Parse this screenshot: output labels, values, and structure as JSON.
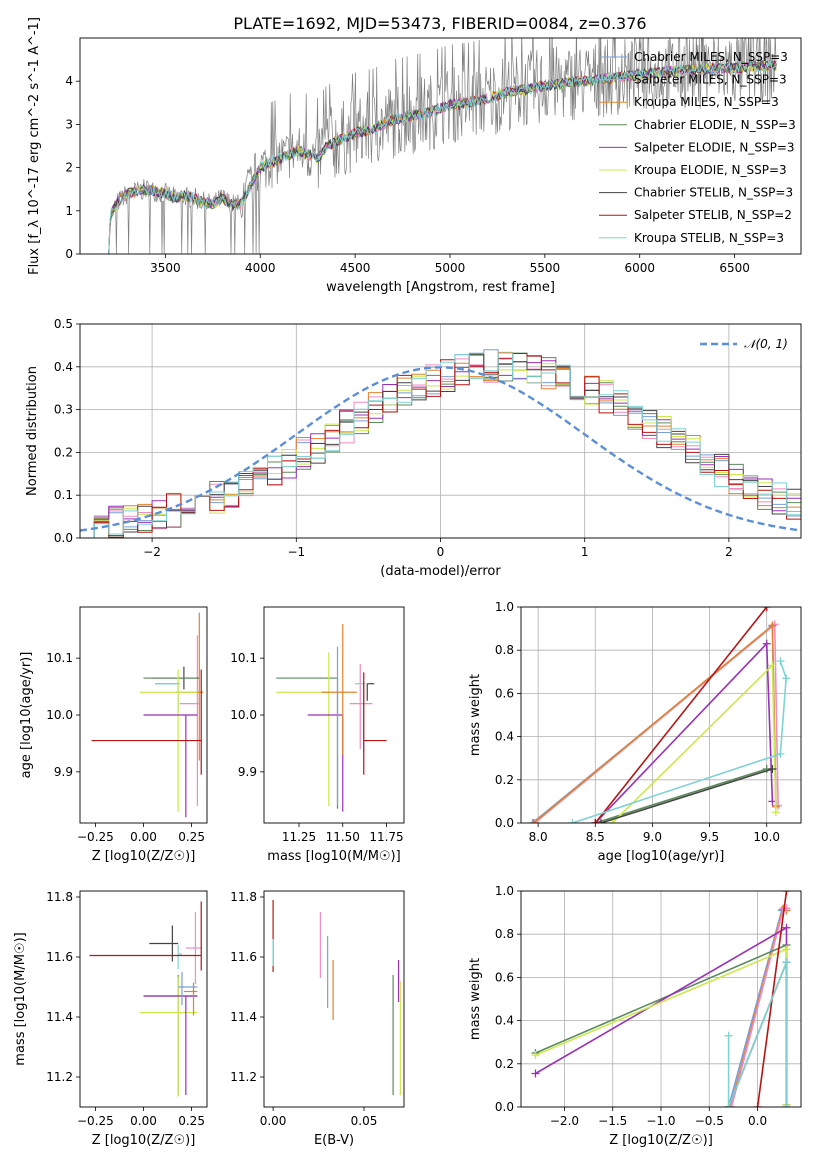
{
  "title": "PLATE=1692, MJD=53473, FIBERID=0084, z=0.376",
  "colors": {
    "chabrier_miles": "#7b9fdc",
    "salpeter_miles": "#f28bc0",
    "kroupa_miles": "#e0832f",
    "chabrier_elodie": "#5b8a5b",
    "salpeter_elodie": "#9b30b8",
    "kroupa_elodie": "#cde84a",
    "chabrier_stelib": "#444444",
    "salpeter_stelib": "#b81414",
    "kroupa_stelib": "#7fd3d3",
    "data": "#7f7f7f",
    "normal": "#5b8fd9"
  },
  "legend_top": [
    {
      "key": "chabrier_miles",
      "text": "Chabrier MILES, N_SSP=3"
    },
    {
      "key": "salpeter_miles",
      "text": "Salpeter MILES, N_SSP=3"
    },
    {
      "key": "kroupa_miles",
      "text": "Kroupa MILES, N_SSP=3"
    },
    {
      "key": "chabrier_elodie",
      "text": "Chabrier ELODIE, N_SSP=3"
    },
    {
      "key": "salpeter_elodie",
      "text": "Salpeter ELODIE, N_SSP=3"
    },
    {
      "key": "kroupa_elodie",
      "text": "Kroupa ELODIE, N_SSP=3"
    },
    {
      "key": "chabrier_stelib",
      "text": "Chabrier STELIB, N_SSP=3"
    },
    {
      "key": "salpeter_stelib",
      "text": "Salpeter STELIB, N_SSP=2"
    },
    {
      "key": "kroupa_stelib",
      "text": "Kroupa STELIB, N_SSP=3"
    }
  ],
  "legend_mid": "𝒩(0, 1)",
  "chart_data": [
    {
      "type": "line",
      "name": "spectrum",
      "xlabel": "wavelength [Angstrom, rest frame]",
      "ylabel": "Flux [f_λ 10^-17 erg cm^-2 s^-1 A^-1]",
      "xlim": [
        3050,
        6850
      ],
      "ylim": [
        0,
        5
      ],
      "xticks": [
        3500,
        4000,
        4500,
        5000,
        5500,
        6000,
        6500
      ],
      "yticks": [
        0,
        1,
        2,
        3,
        4
      ],
      "x": [
        3200,
        3210,
        3250,
        3300,
        3350,
        3400,
        3450,
        3500,
        3550,
        3600,
        3650,
        3700,
        3750,
        3800,
        3850,
        3900,
        3950,
        4000,
        4050,
        4100,
        4150,
        4200,
        4250,
        4300,
        4350,
        4400,
        4450,
        4500,
        4600,
        4700,
        4800,
        4900,
        5000,
        5100,
        5200,
        5300,
        5400,
        5500,
        5600,
        5700,
        5800,
        5900,
        6000,
        6100,
        6200,
        6300,
        6400,
        6500,
        6600,
        6700
      ],
      "y": [
        0.0,
        0.9,
        1.2,
        1.4,
        1.45,
        1.5,
        1.45,
        1.4,
        1.3,
        1.35,
        1.3,
        1.2,
        1.15,
        1.3,
        1.15,
        1.15,
        1.6,
        2.0,
        2.1,
        2.2,
        2.3,
        2.4,
        2.3,
        2.2,
        2.5,
        2.6,
        2.7,
        2.8,
        2.9,
        3.1,
        3.2,
        3.3,
        3.45,
        3.5,
        3.6,
        3.75,
        3.8,
        3.9,
        3.95,
        4.0,
        4.05,
        4.1,
        4.15,
        4.2,
        4.25,
        4.25,
        4.3,
        4.3,
        4.35,
        4.35
      ]
    },
    {
      "type": "bar",
      "name": "residual histogram",
      "xlabel": "(data-model)/error",
      "ylabel": "Normed distribution",
      "xlim": [
        -2.5,
        2.5
      ],
      "ylim": [
        0,
        0.5
      ],
      "xticks": [
        -2,
        -1,
        0,
        1,
        2
      ],
      "yticks": [
        0.0,
        0.1,
        0.2,
        0.3,
        0.4,
        0.5
      ],
      "bin_width": 0.1,
      "bins_from": -2.5,
      "values": [
        0.03,
        0.03,
        0.035,
        0.04,
        0.05,
        0.055,
        0.065,
        0.075,
        0.085,
        0.095,
        0.11,
        0.12,
        0.14,
        0.155,
        0.175,
        0.195,
        0.215,
        0.235,
        0.26,
        0.28,
        0.3,
        0.32,
        0.34,
        0.355,
        0.37,
        0.38,
        0.39,
        0.395,
        0.4,
        0.4,
        0.4,
        0.395,
        0.385,
        0.375,
        0.36,
        0.345,
        0.33,
        0.31,
        0.29,
        0.27,
        0.245,
        0.225,
        0.205,
        0.18,
        0.16,
        0.14,
        0.12,
        0.105,
        0.09,
        0.075
      ],
      "normal_curve": "N(0,1)"
    },
    {
      "type": "scatter",
      "name": "age vs Z",
      "xlabel": "Z [log10(Z/Z☉)]",
      "ylabel": "age [log10(age/yr)]",
      "xlim": [
        -0.33,
        0.33
      ],
      "ylim": [
        9.81,
        10.19
      ],
      "xticks": [
        -0.25,
        0.0,
        0.25
      ],
      "yticks": [
        9.9,
        10.0,
        10.1
      ],
      "points": [
        {
          "key": "chabrier_miles",
          "x": 0.17,
          "y": 10.055,
          "xerr": [
            0.11,
            0.01
          ],
          "yerr": [
            0.0,
            0.0
          ]
        },
        {
          "key": "kroupa_stelib",
          "x": 0.18,
          "y": 10.055,
          "xerr": [
            0.12,
            0.01
          ],
          "yerr": [
            0.05,
            0.005
          ]
        },
        {
          "key": "salpeter_miles",
          "x": 0.28,
          "y": 10.02,
          "xerr": [
            0.09,
            0.01
          ],
          "yerr": [
            0.18,
            0.12
          ]
        },
        {
          "key": "chabrier_stelib",
          "x": 0.21,
          "y": 10.065,
          "xerr": [
            0.17,
            0.08
          ],
          "yerr": [
            0.02,
            0.02
          ]
        },
        {
          "key": "chabrier_elodie",
          "x": 0.18,
          "y": 10.065,
          "xerr": [
            0.18,
            0.1
          ],
          "yerr": [
            0.0,
            0.0
          ]
        },
        {
          "key": "kroupa_miles",
          "x": 0.29,
          "y": 10.04,
          "xerr": [
            0.12,
            0.02
          ],
          "yerr": [
            0.12,
            0.14
          ]
        },
        {
          "key": "kroupa_elodie",
          "x": 0.18,
          "y": 10.04,
          "xerr": [
            0.2,
            0.1
          ],
          "yerr": [
            0.21,
            0.04
          ]
        },
        {
          "key": "salpeter_elodie",
          "x": 0.22,
          "y": 10.0,
          "xerr": [
            0.22,
            0.06
          ],
          "yerr": [
            0.18,
            0.0
          ]
        },
        {
          "key": "salpeter_stelib",
          "x": 0.3,
          "y": 9.955,
          "xerr": [
            0.57,
            0.0
          ],
          "yerr": [
            0.06,
            0.125
          ]
        }
      ]
    },
    {
      "type": "scatter",
      "name": "age vs mass",
      "xlabel": "mass [log10(M/M☉)]",
      "ylabel": "",
      "xlim": [
        11.05,
        11.85
      ],
      "ylim": [
        9.81,
        10.19
      ],
      "xticks": [
        11.25,
        11.5,
        11.75
      ],
      "yticks": [
        9.9,
        10.0,
        10.1
      ],
      "points": [
        {
          "key": "chabrier_elodie",
          "x": 11.47,
          "y": 10.065,
          "xerr": [
            0.35,
            0.0
          ],
          "yerr": [
            0.23,
            0.0
          ]
        },
        {
          "key": "kroupa_elodie",
          "x": 11.42,
          "y": 10.04,
          "xerr": [
            0.3,
            0.0
          ],
          "yerr": [
            0.2,
            0.07
          ]
        },
        {
          "key": "salpeter_elodie",
          "x": 11.5,
          "y": 10.0,
          "xerr": [
            0.2,
            0.0
          ],
          "yerr": [
            0.17,
            0.0
          ]
        },
        {
          "key": "kroupa_miles",
          "x": 11.5,
          "y": 10.04,
          "xerr": [
            0.12,
            0.08
          ],
          "yerr": [
            0.11,
            0.12
          ]
        },
        {
          "key": "chabrier_miles",
          "x": 11.47,
          "y": 10.04,
          "xerr": [
            0.0,
            0.0
          ],
          "yerr": [
            0.2,
            0.08
          ]
        },
        {
          "key": "salpeter_miles",
          "x": 11.6,
          "y": 10.02,
          "xerr": [
            0.06,
            0.07
          ],
          "yerr": [
            0.08,
            0.07
          ]
        },
        {
          "key": "kroupa_stelib",
          "x": 11.62,
          "y": 10.055,
          "xerr": [
            0.05,
            0.01
          ],
          "yerr": [
            0.12,
            0.0
          ]
        },
        {
          "key": "chabrier_stelib",
          "x": 11.64,
          "y": 10.055,
          "xerr": [
            0.0,
            0.04
          ],
          "yerr": [
            0.03,
            0.0
          ]
        },
        {
          "key": "salpeter_stelib",
          "x": 11.62,
          "y": 9.955,
          "xerr": [
            0.0,
            0.13
          ],
          "yerr": [
            0.06,
            0.12
          ]
        }
      ]
    },
    {
      "type": "line",
      "name": "mass weight vs age",
      "xlabel": "age [log10(age/yr)]",
      "ylabel": "mass weight",
      "xlim": [
        7.85,
        10.3
      ],
      "ylim": [
        0,
        1
      ],
      "xticks": [
        8.0,
        8.5,
        9.0,
        9.5,
        10.0
      ],
      "yticks": [
        0.0,
        0.2,
        0.4,
        0.6,
        0.8,
        1.0
      ],
      "series": [
        {
          "key": "chabrier_miles",
          "x": [
            7.95,
            10.05,
            10.08
          ],
          "y": [
            0.0,
            0.91,
            0.08
          ]
        },
        {
          "key": "salpeter_miles",
          "x": [
            7.97,
            10.07,
            10.1
          ],
          "y": [
            0.0,
            0.92,
            0.08
          ]
        },
        {
          "key": "kroupa_miles",
          "x": [
            7.96,
            10.05,
            10.08
          ],
          "y": [
            0.0,
            0.915,
            0.075
          ]
        },
        {
          "key": "chabrier_elodie",
          "x": [
            8.5,
            10.0
          ],
          "y": [
            0.0,
            0.25
          ]
        },
        {
          "key": "salpeter_elodie",
          "x": [
            8.5,
            10.0,
            10.05
          ],
          "y": [
            0.0,
            0.83,
            0.1
          ]
        },
        {
          "key": "kroupa_elodie",
          "x": [
            8.65,
            10.05,
            10.08
          ],
          "y": [
            0.0,
            0.73,
            0.05
          ]
        },
        {
          "key": "chabrier_stelib",
          "x": [
            8.55,
            10.05
          ],
          "y": [
            0.0,
            0.25
          ]
        },
        {
          "key": "salpeter_stelib",
          "x": [
            8.5,
            10.0
          ],
          "y": [
            0.0,
            1.0
          ]
        },
        {
          "key": "kroupa_stelib",
          "x": [
            8.3,
            10.12,
            10.17,
            10.12
          ],
          "y": [
            0.0,
            0.32,
            0.67,
            0.75
          ]
        }
      ]
    },
    {
      "type": "scatter",
      "name": "mass vs Z",
      "xlabel": "Z [log10(Z/Z☉)]",
      "ylabel": "mass [log10(M/M☉)]",
      "xlim": [
        -0.33,
        0.33
      ],
      "ylim": [
        11.1,
        11.82
      ],
      "xticks": [
        -0.25,
        0.0,
        0.25
      ],
      "yticks": [
        11.2,
        11.4,
        11.6,
        11.8
      ],
      "points": [
        {
          "key": "chabrier_elodie",
          "x": 0.18,
          "y": 11.47,
          "xerr": [
            0.18,
            0.1
          ],
          "yerr": [
            0.33,
            0.07
          ]
        },
        {
          "key": "kroupa_elodie",
          "x": 0.18,
          "y": 11.415,
          "xerr": [
            0.2,
            0.1
          ],
          "yerr": [
            0.28,
            0.12
          ]
        },
        {
          "key": "salpeter_elodie",
          "x": 0.22,
          "y": 11.47,
          "xerr": [
            0.22,
            0.06
          ],
          "yerr": [
            0.33,
            0.0
          ]
        },
        {
          "key": "chabrier_stelib",
          "x": 0.15,
          "y": 11.645,
          "xerr": [
            0.12,
            0.03
          ],
          "yerr": [
            0.06,
            0.06
          ]
        },
        {
          "key": "chabrier_miles",
          "x": 0.2,
          "y": 11.5,
          "xerr": [
            0.02,
            0.08
          ],
          "yerr": [
            0.06,
            0.05
          ]
        },
        {
          "key": "kroupa_miles",
          "x": 0.26,
          "y": 11.485,
          "xerr": [
            0.05,
            0.02
          ],
          "yerr": [
            0.08,
            0.03
          ]
        },
        {
          "key": "salpeter_miles",
          "x": 0.27,
          "y": 11.63,
          "xerr": [
            0.05,
            0.03
          ],
          "yerr": [
            0.12,
            0.12
          ]
        },
        {
          "key": "kroupa_stelib",
          "x": 0.18,
          "y": 11.61,
          "xerr": [
            0.0,
            0.02
          ],
          "yerr": [
            0.05,
            0.03
          ]
        },
        {
          "key": "salpeter_stelib",
          "x": 0.3,
          "y": 11.605,
          "xerr": [
            0.58,
            0.0
          ],
          "yerr": [
            0.05,
            0.18
          ]
        }
      ]
    },
    {
      "type": "scatter",
      "name": "mass vs E(B-V)",
      "xlabel": "E(B-V)",
      "ylabel": "",
      "xlim": [
        -0.005,
        0.072
      ],
      "ylim": [
        11.1,
        11.82
      ],
      "xticks": [
        0.0,
        0.05
      ],
      "yticks": [
        11.2,
        11.4,
        11.6,
        11.8
      ],
      "points": [
        {
          "key": "salpeter_stelib",
          "x": 0.0,
          "y": 11.67,
          "xerr": [
            0,
            0
          ],
          "yerr": [
            0.12,
            0.12
          ]
        },
        {
          "key": "kroupa_stelib",
          "x": 0.0,
          "y": 11.6,
          "xerr": [
            0,
            0
          ],
          "yerr": [
            0.03,
            0.06
          ]
        },
        {
          "key": "salpeter_miles",
          "x": 0.026,
          "y": 11.64,
          "xerr": [
            0,
            0
          ],
          "yerr": [
            0.11,
            0.11
          ]
        },
        {
          "key": "chabrier_miles",
          "x": 0.03,
          "y": 11.55,
          "xerr": [
            0,
            0
          ],
          "yerr": [
            0.12,
            0.12
          ]
        },
        {
          "key": "kroupa_miles",
          "x": 0.033,
          "y": 11.49,
          "xerr": [
            0,
            0
          ],
          "yerr": [
            0.1,
            0.1
          ]
        },
        {
          "key": "chabrier_elodie",
          "x": 0.066,
          "y": 11.34,
          "xerr": [
            0,
            0
          ],
          "yerr": [
            0.2,
            0.2
          ]
        },
        {
          "key": "salpeter_elodie",
          "x": 0.069,
          "y": 11.52,
          "xerr": [
            0,
            0
          ],
          "yerr": [
            0.07,
            0.07
          ]
        },
        {
          "key": "kroupa_elodie",
          "x": 0.07,
          "y": 11.33,
          "xerr": [
            0,
            0
          ],
          "yerr": [
            0.19,
            0.19
          ]
        }
      ]
    },
    {
      "type": "line",
      "name": "mass weight vs Z",
      "xlabel": "Z [log10(Z/Z☉)]",
      "ylabel": "mass weight",
      "xlim": [
        -2.45,
        0.45
      ],
      "ylim": [
        0,
        1
      ],
      "xticks": [
        -2.0,
        -1.5,
        -1.0,
        -0.5,
        0.0
      ],
      "yticks": [
        0.0,
        0.2,
        0.4,
        0.6,
        0.8,
        1.0
      ],
      "series": [
        {
          "key": "chabrier_miles",
          "x": [
            -0.3,
            0.25,
            0.3
          ],
          "y": [
            0.0,
            0.91,
            0.91
          ]
        },
        {
          "key": "kroupa_miles",
          "x": [
            -0.28,
            0.26,
            0.3
          ],
          "y": [
            0.0,
            0.915,
            0.91
          ]
        },
        {
          "key": "salpeter_miles",
          "x": [
            -0.27,
            0.27,
            0.3
          ],
          "y": [
            0.0,
            0.92,
            0.92
          ]
        },
        {
          "key": "chabrier_elodie",
          "x": [
            -2.3,
            0.3,
            0.3
          ],
          "y": [
            0.25,
            0.75,
            0.01
          ]
        },
        {
          "key": "salpeter_elodie",
          "x": [
            -2.3,
            0.3,
            0.3
          ],
          "y": [
            0.155,
            0.83,
            0.01
          ]
        },
        {
          "key": "kroupa_elodie",
          "x": [
            -2.3,
            0.3,
            0.3
          ],
          "y": [
            0.24,
            0.73,
            0.01
          ]
        },
        {
          "key": "chabrier_stelib",
          "x": [
            -0.3,
            0.3,
            0.3
          ],
          "y": [
            0.0,
            0.67,
            0.0
          ]
        },
        {
          "key": "salpeter_stelib",
          "x": [
            0.0,
            0.3
          ],
          "y": [
            0.0,
            1.0
          ]
        },
        {
          "key": "kroupa_stelib",
          "x": [
            -0.3,
            -0.3,
            0.3,
            0.3
          ],
          "y": [
            0.33,
            0.0,
            0.67,
            0.0
          ]
        }
      ]
    }
  ]
}
